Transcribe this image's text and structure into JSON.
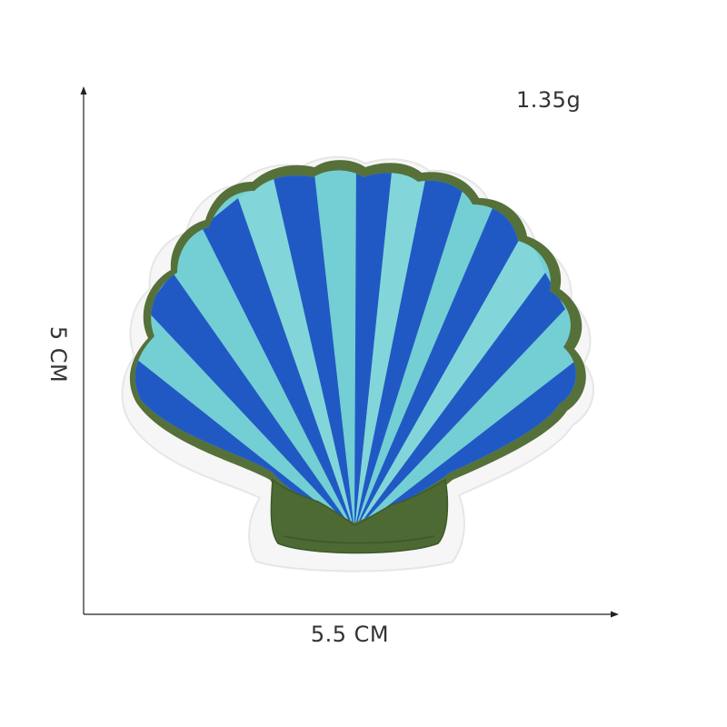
{
  "measurements": {
    "weight": "1.35g",
    "height": "5 CM",
    "width": "5.5 CM"
  },
  "patch": {
    "subject": "scallop-seashell-embroidered-patch",
    "colors": {
      "felt_backing": "#f7f7f7",
      "outline": "#56703a",
      "base": "#4d6a34",
      "stripe_dark": "#2159c4",
      "stripe_light": "#73cfd3",
      "stitch_highlight": "#9fe2e4"
    }
  }
}
